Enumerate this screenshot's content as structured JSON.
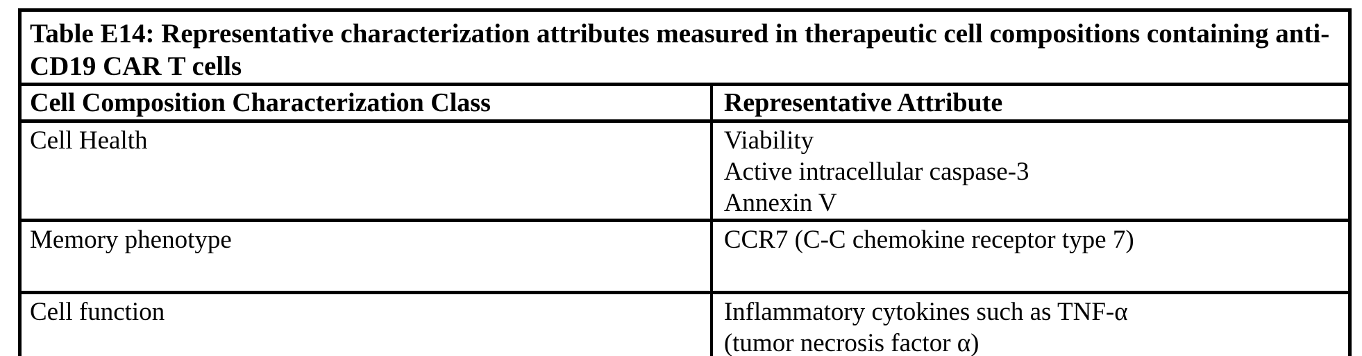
{
  "table": {
    "title": "Table E14: Representative characterization attributes measured in therapeutic cell compositions containing anti-CD19 CAR T cells",
    "columns": {
      "class_header": "Cell Composition Characterization Class",
      "attribute_header": "Representative Attribute"
    },
    "rows": [
      {
        "class": "Cell Health",
        "attributes": [
          "Viability",
          "Active intracellular caspase-3",
          "Annexin V"
        ]
      },
      {
        "class": "Memory phenotype",
        "attributes": [
          "CCR7 (C-C chemokine receptor type 7)"
        ]
      },
      {
        "class": "Cell function",
        "attributes": [
          "Inflammatory cytokines such as TNF-α",
          "(tumor necrosis factor α)"
        ]
      }
    ],
    "colors": {
      "text": "#000000",
      "border": "#000000",
      "background": "#ffffff"
    }
  }
}
